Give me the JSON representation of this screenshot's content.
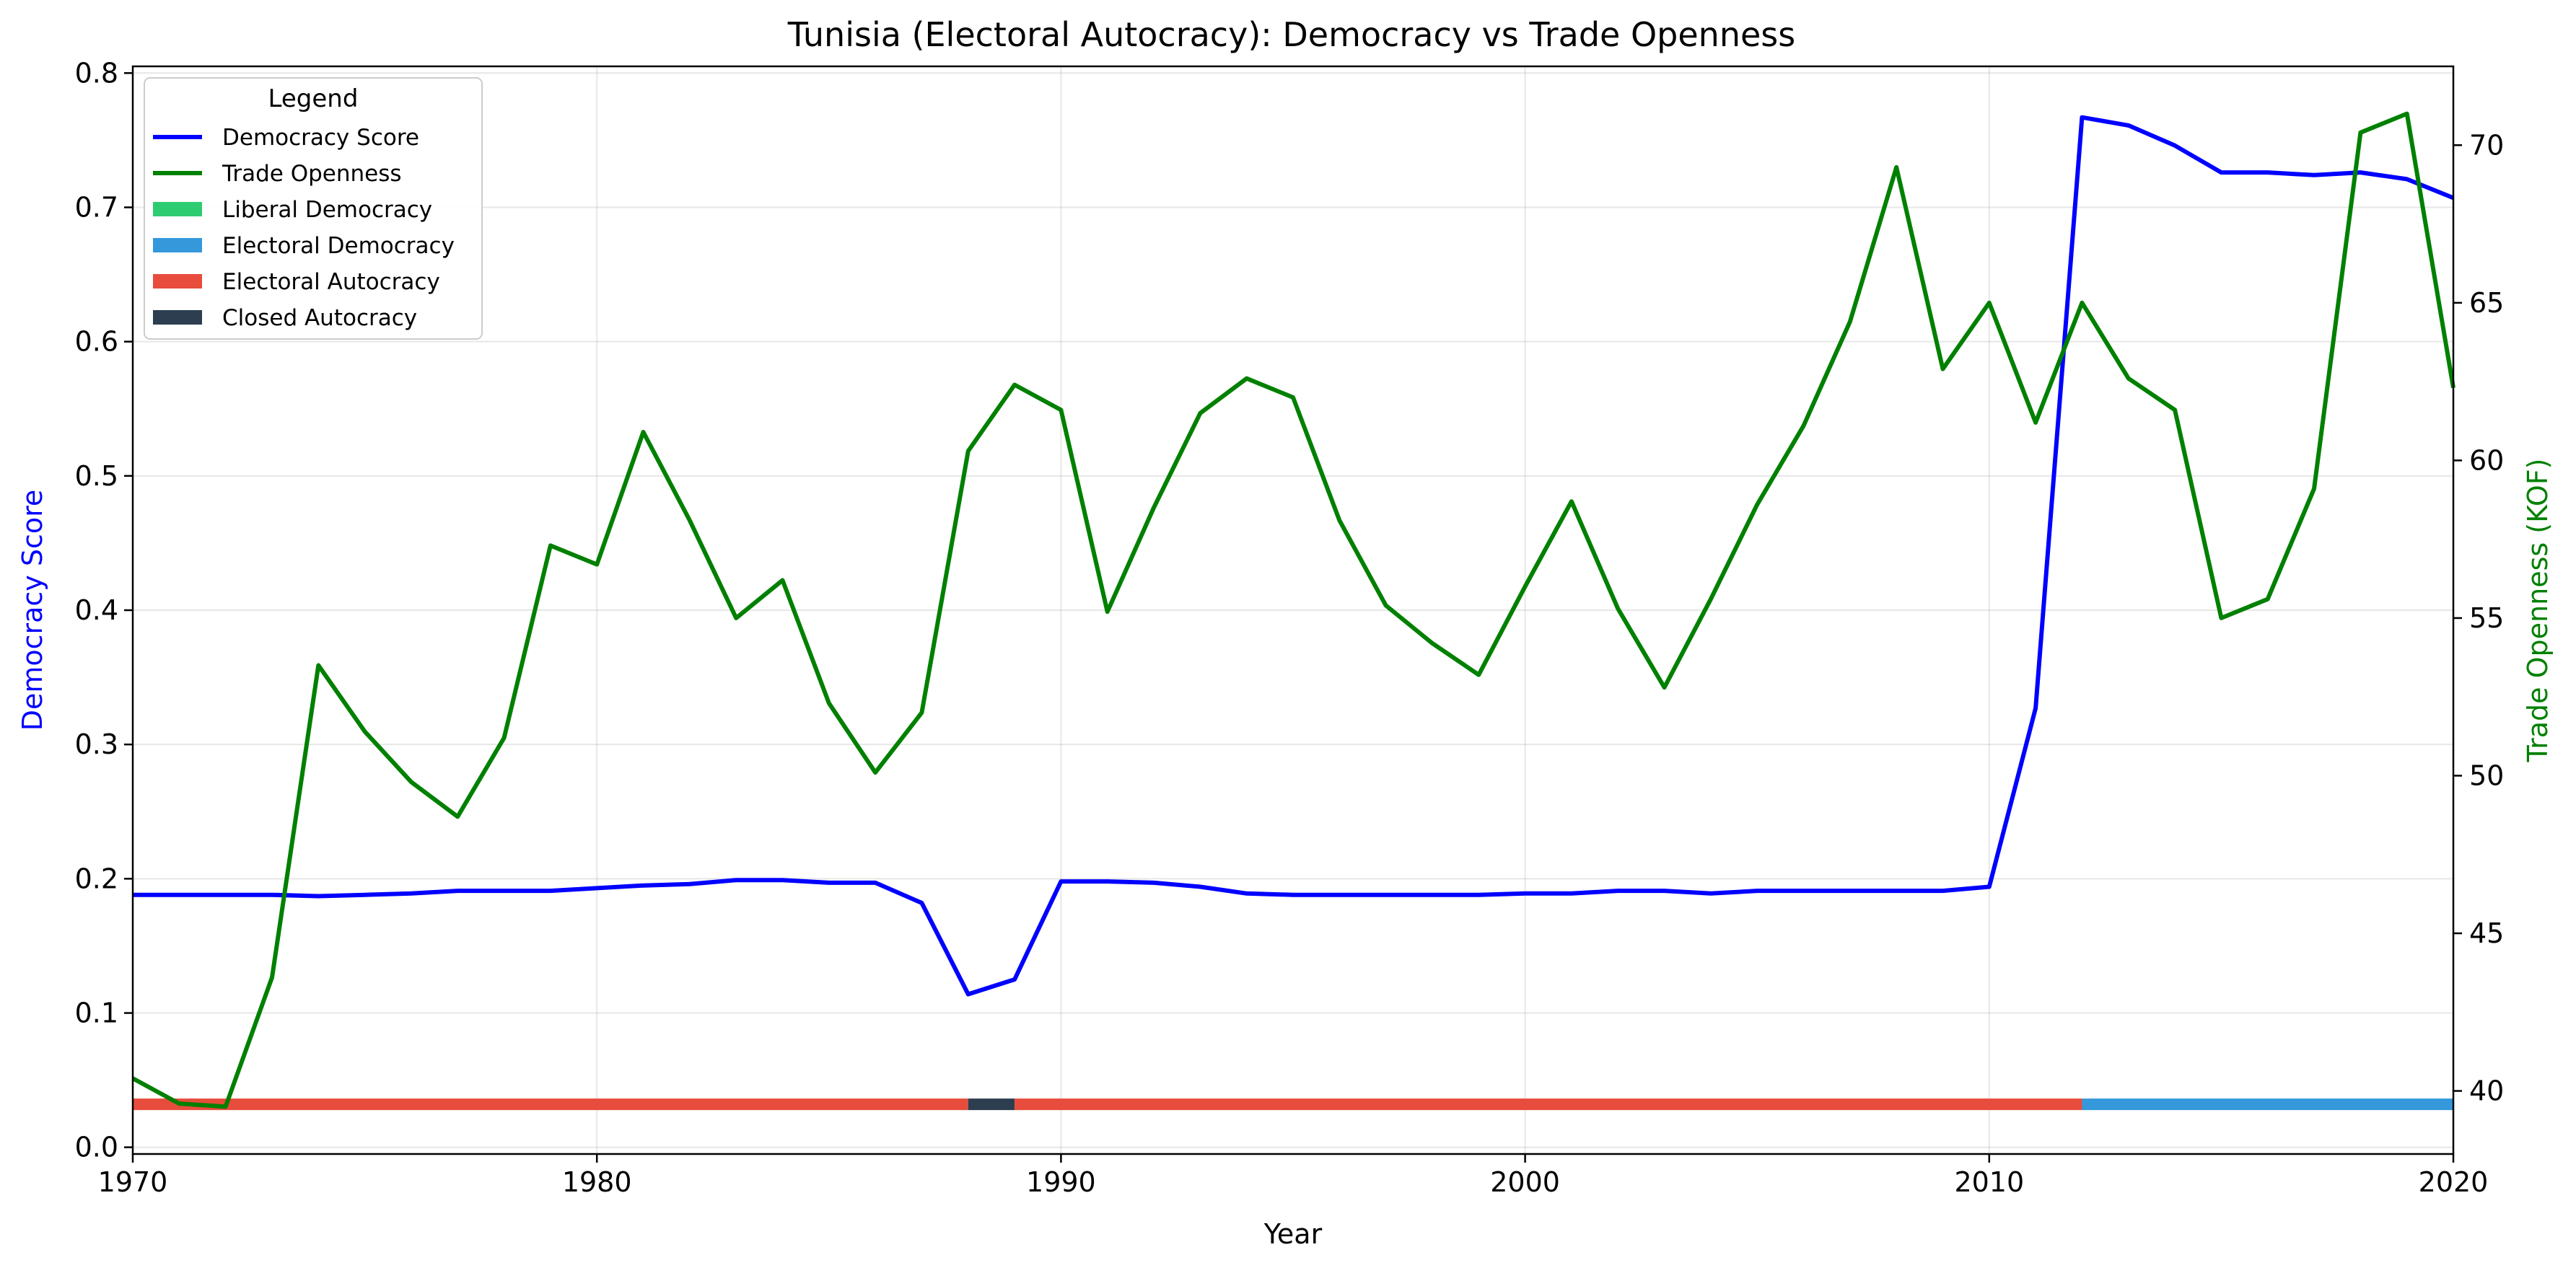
{
  "chart_data": {
    "type": "line",
    "title": "Tunisia (Electoral Autocracy): Democracy vs Trade Openness",
    "xlabel": "Year",
    "ylabel_left": "Democracy Score",
    "ylabel_right": "Trade Openness (KOF)",
    "xlim": [
      1970,
      2020
    ],
    "ylim_left": [
      -0.005,
      0.805
    ],
    "ylim_right": [
      38.0,
      72.5
    ],
    "x_ticks": [
      "1970",
      "1980",
      "1990",
      "2000",
      "2010",
      "2020"
    ],
    "y_left_ticks": [
      "0.0",
      "0.1",
      "0.2",
      "0.3",
      "0.4",
      "0.5",
      "0.6",
      "0.7",
      "0.8"
    ],
    "y_right_ticks": [
      "40",
      "45",
      "50",
      "55",
      "60",
      "65",
      "70"
    ],
    "grid": true,
    "legend": {
      "title": "Legend",
      "position": "top-left",
      "entries": [
        "Democracy Score",
        "Trade Openness",
        "Liberal Democracy",
        "Electoral Democracy",
        "Electoral Autocracy",
        "Closed Autocracy"
      ]
    },
    "colors": {
      "democracy": "#0000ff",
      "trade": "#008000",
      "liberal_democracy": "#2ecc71",
      "electoral_democracy": "#3498db",
      "electoral_autocracy": "#e74c3c",
      "closed_autocracy": "#2c3e50"
    },
    "years": [
      1970,
      1971,
      1972,
      1973,
      1974,
      1975,
      1976,
      1977,
      1978,
      1979,
      1980,
      1981,
      1982,
      1983,
      1984,
      1985,
      1986,
      1987,
      1988,
      1989,
      1990,
      1991,
      1992,
      1993,
      1994,
      1995,
      1996,
      1997,
      1998,
      1999,
      2000,
      2001,
      2002,
      2003,
      2004,
      2005,
      2006,
      2007,
      2008,
      2009,
      2010,
      2011,
      2012,
      2013,
      2014,
      2015,
      2016,
      2017,
      2018,
      2019,
      2020
    ],
    "series": [
      {
        "name": "Democracy Score",
        "axis": "left",
        "values": [
          0.188,
          0.188,
          0.188,
          0.188,
          0.187,
          0.188,
          0.189,
          0.191,
          0.191,
          0.191,
          0.193,
          0.195,
          0.196,
          0.199,
          0.199,
          0.197,
          0.197,
          0.182,
          0.114,
          0.125,
          0.198,
          0.198,
          0.197,
          0.194,
          0.189,
          0.188,
          0.188,
          0.188,
          0.188,
          0.188,
          0.189,
          0.189,
          0.191,
          0.191,
          0.189,
          0.191,
          0.191,
          0.191,
          0.191,
          0.191,
          0.194,
          0.327,
          0.767,
          0.761,
          0.746,
          0.726,
          0.726,
          0.724,
          0.726,
          0.721,
          0.707
        ]
      },
      {
        "name": "Trade Openness",
        "axis": "right",
        "values": [
          40.4,
          39.6,
          39.5,
          43.6,
          53.5,
          51.4,
          49.8,
          48.7,
          51.2,
          57.3,
          56.7,
          60.9,
          58.1,
          55.0,
          56.2,
          52.3,
          50.1,
          52.0,
          60.3,
          62.4,
          61.6,
          55.2,
          58.5,
          61.5,
          62.6,
          62.0,
          58.1,
          55.4,
          54.2,
          53.2,
          56.0,
          58.7,
          55.3,
          52.8,
          55.6,
          58.6,
          61.1,
          64.4,
          69.3,
          62.9,
          65.0,
          61.2,
          65.0,
          62.6,
          61.6,
          55.0,
          55.6,
          59.1,
          70.4,
          71.0,
          62.3
        ]
      }
    ],
    "regime_segments": [
      {
        "regime": "Electoral Autocracy",
        "start": 1970,
        "end": 1988
      },
      {
        "regime": "Closed Autocracy",
        "start": 1988,
        "end": 1989
      },
      {
        "regime": "Electoral Autocracy",
        "start": 1989,
        "end": 2012
      },
      {
        "regime": "Electoral Democracy",
        "start": 2012,
        "end": 2020
      }
    ],
    "regime_band_level": 0.032
  }
}
